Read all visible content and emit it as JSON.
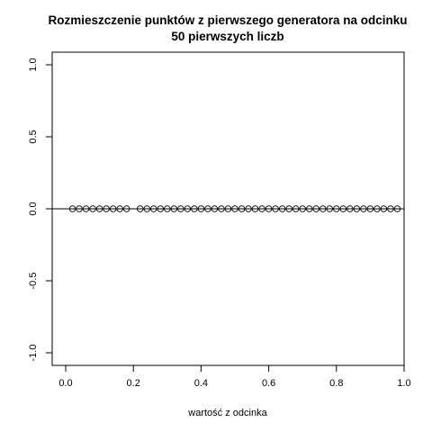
{
  "chart_data": {
    "type": "scatter",
    "title": "Rozmieszczenie punktów z pierwszego generatora na odcinku",
    "subtitle": "50 pierwszych liczb",
    "xlabel": "wartość z odcinka",
    "ylabel": "",
    "xlim": [
      0,
      1
    ],
    "ylim": [
      -1,
      1
    ],
    "x_ticks": [
      "0.0",
      "0.2",
      "0.4",
      "0.6",
      "0.8",
      "1.0"
    ],
    "y_ticks": [
      "-1.0",
      "-0.5",
      "0.0",
      "0.5",
      "1.0"
    ],
    "hline_y": 0,
    "grid": false,
    "series": [
      {
        "x": [
          0.02,
          0.04,
          0.06,
          0.08,
          0.1,
          0.12,
          0.14,
          0.16,
          0.18,
          0.22,
          0.24,
          0.26,
          0.28,
          0.3,
          0.32,
          0.34,
          0.36,
          0.38,
          0.4,
          0.42,
          0.44,
          0.46,
          0.48,
          0.5,
          0.52,
          0.54,
          0.56,
          0.58,
          0.6,
          0.62,
          0.64,
          0.66,
          0.68,
          0.7,
          0.72,
          0.74,
          0.76,
          0.78,
          0.8,
          0.82,
          0.84,
          0.86,
          0.88,
          0.9,
          0.92,
          0.94,
          0.96,
          0.98
        ],
        "y": [
          0,
          0,
          0,
          0,
          0,
          0,
          0,
          0,
          0,
          0,
          0,
          0,
          0,
          0,
          0,
          0,
          0,
          0,
          0,
          0,
          0,
          0,
          0,
          0,
          0,
          0,
          0,
          0,
          0,
          0,
          0,
          0,
          0,
          0,
          0,
          0,
          0,
          0,
          0,
          0,
          0,
          0,
          0,
          0,
          0,
          0,
          0,
          0
        ]
      }
    ]
  }
}
